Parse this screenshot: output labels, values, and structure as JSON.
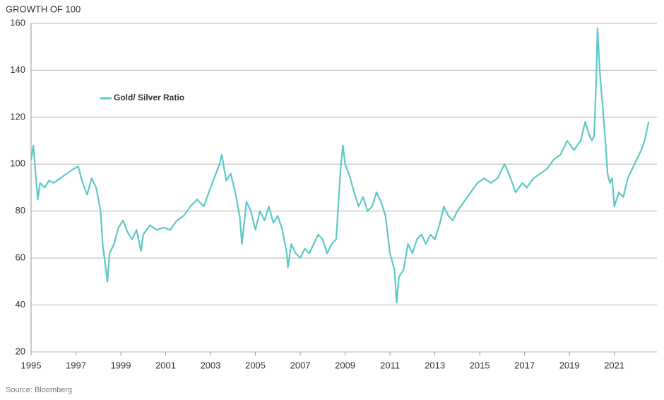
{
  "chart_data": {
    "type": "line",
    "title": "GROWTH OF 100",
    "source": "Source: Bloomberg",
    "xlim": [
      1995,
      2022.9
    ],
    "xticks": [
      1995,
      1997,
      1999,
      2001,
      2003,
      2005,
      2007,
      2009,
      2011,
      2013,
      2015,
      2017,
      2019,
      2021
    ],
    "ylim": [
      20,
      160
    ],
    "yticks": [
      20,
      40,
      60,
      80,
      100,
      120,
      140,
      160
    ],
    "grid": true,
    "legend": "upper left",
    "series": [
      {
        "name": "Gold/ Silver Ratio",
        "color": "#5ec8c8",
        "x": [
          1995.0,
          1995.1,
          1995.2,
          1995.3,
          1995.4,
          1995.6,
          1995.8,
          1996.0,
          1996.3,
          1996.6,
          1996.9,
          1997.1,
          1997.3,
          1997.5,
          1997.7,
          1997.9,
          1998.1,
          1998.2,
          1998.3,
          1998.4,
          1998.5,
          1998.7,
          1998.9,
          1999.1,
          1999.3,
          1999.5,
          1999.7,
          1999.9,
          2000.0,
          2000.3,
          2000.6,
          2000.9,
          2001.2,
          2001.5,
          2001.8,
          2002.1,
          2002.4,
          2002.7,
          2003.0,
          2003.2,
          2003.4,
          2003.5,
          2003.7,
          2003.9,
          2004.1,
          2004.3,
          2004.4,
          2004.6,
          2004.8,
          2005.0,
          2005.2,
          2005.4,
          2005.6,
          2005.8,
          2006.0,
          2006.2,
          2006.4,
          2006.45,
          2006.6,
          2006.8,
          2007.0,
          2007.2,
          2007.4,
          2007.6,
          2007.8,
          2008.0,
          2008.2,
          2008.4,
          2008.6,
          2008.8,
          2008.9,
          2009.0,
          2009.2,
          2009.4,
          2009.6,
          2009.8,
          2010.0,
          2010.2,
          2010.4,
          2010.6,
          2010.8,
          2011.0,
          2011.2,
          2011.3,
          2011.4,
          2011.6,
          2011.8,
          2012.0,
          2012.2,
          2012.4,
          2012.6,
          2012.8,
          2013.0,
          2013.2,
          2013.4,
          2013.6,
          2013.8,
          2014.0,
          2014.3,
          2014.6,
          2014.9,
          2015.2,
          2015.5,
          2015.8,
          2016.1,
          2016.3,
          2016.6,
          2016.9,
          2017.1,
          2017.4,
          2017.7,
          2018.0,
          2018.3,
          2018.6,
          2018.9,
          2019.2,
          2019.5,
          2019.7,
          2019.9,
          2020.0,
          2020.1,
          2020.2,
          2020.25,
          2020.35,
          2020.45,
          2020.6,
          2020.7,
          2020.8,
          2020.9,
          2021.0,
          2021.2,
          2021.4,
          2021.6,
          2021.8,
          2022.0,
          2022.2,
          2022.35,
          2022.53
        ],
        "values": [
          102,
          108,
          96,
          85,
          92,
          90,
          93,
          92,
          94,
          96,
          98,
          99,
          92,
          87,
          94,
          90,
          80,
          65,
          58,
          50,
          62,
          66,
          73,
          76,
          71,
          68,
          72,
          63,
          70,
          74,
          72,
          73,
          72,
          76,
          78,
          82,
          85,
          82,
          90,
          95,
          100,
          104,
          93,
          96,
          88,
          78,
          66,
          84,
          80,
          72,
          80,
          76,
          82,
          75,
          78,
          72,
          62,
          56,
          66,
          62,
          60,
          64,
          62,
          66,
          70,
          68,
          62,
          66,
          68,
          98,
          108,
          100,
          95,
          88,
          82,
          86,
          80,
          82,
          88,
          84,
          78,
          62,
          55,
          41,
          52,
          55,
          66,
          62,
          68,
          70,
          66,
          70,
          68,
          74,
          82,
          78,
          76,
          80,
          84,
          88,
          92,
          94,
          92,
          94,
          100,
          96,
          88,
          92,
          90,
          94,
          96,
          98,
          102,
          104,
          110,
          106,
          110,
          118,
          112,
          110,
          112,
          138,
          158,
          140,
          128,
          110,
          96,
          92,
          94,
          82,
          88,
          86,
          94,
          98,
          102,
          106,
          110,
          118
        ]
      }
    ]
  }
}
